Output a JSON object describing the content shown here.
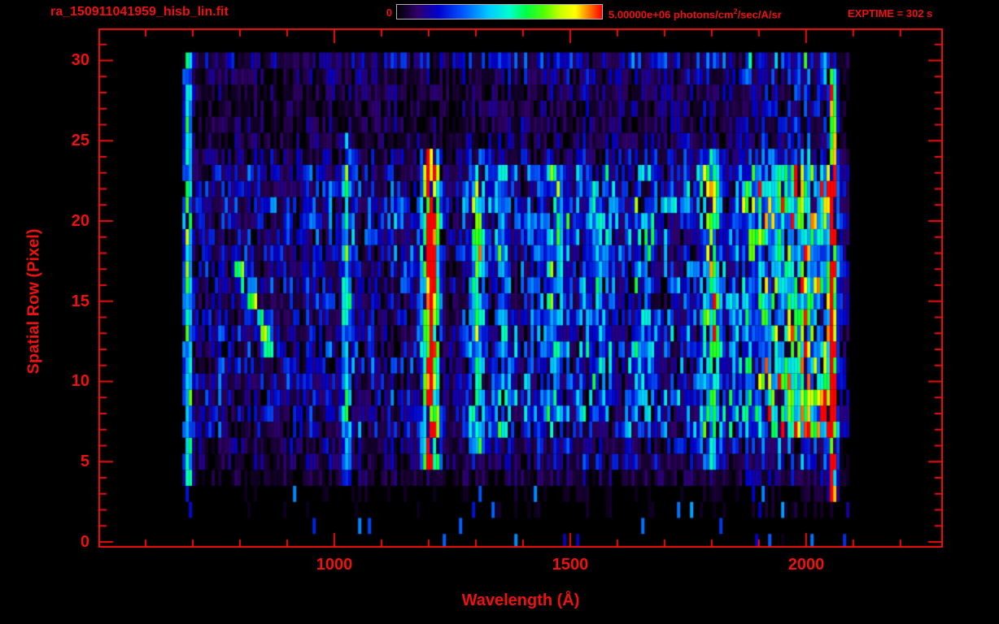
{
  "colors": {
    "accent": "#ee1111",
    "background": "#000000",
    "colorbar_border": "#b0b0b0"
  },
  "header": {
    "title": "ra_150911041959_hisb_lin.fit",
    "colorbar_min": "0",
    "colorbar_max_prefix": "5.00000e+06 photons/cm",
    "colorbar_max_sup": "2",
    "colorbar_max_suffix": "/sec/A/sr",
    "exptime": "EXPTIME = 302 s"
  },
  "chart_data": {
    "type": "heatmap",
    "title": "ra_150911041959_hisb_lin.fit",
    "xlabel": "Wavelength (Å)",
    "ylabel": "Spatial Row (Pixel)",
    "xlim": [
      500,
      2290
    ],
    "ylim": [
      -0.35,
      32.0
    ],
    "xticks": [
      1000,
      1500,
      2000
    ],
    "xtick_labels": [
      "1000",
      "1500",
      "2000"
    ],
    "xtick_minor_step": 100,
    "yticks": [
      0,
      5,
      10,
      15,
      20,
      25,
      30
    ],
    "ytick_labels": [
      "0",
      "5",
      "10",
      "15",
      "20",
      "25",
      "30"
    ],
    "ytick_minor_step": 1,
    "grid": false,
    "colorbar": {
      "min": 0,
      "max": 5000000,
      "units": "photons/cm2/sec/A/sr",
      "position": "top"
    },
    "exptime_seconds": 302,
    "colormap": [
      [
        0.0,
        "#000000"
      ],
      [
        0.1,
        "#30006a"
      ],
      [
        0.2,
        "#0000cc"
      ],
      [
        0.32,
        "#0055ff"
      ],
      [
        0.45,
        "#00ccff"
      ],
      [
        0.55,
        "#00ffcc"
      ],
      [
        0.63,
        "#00ff44"
      ],
      [
        0.72,
        "#55ff00"
      ],
      [
        0.8,
        "#ccff00"
      ],
      [
        0.87,
        "#ffff00"
      ],
      [
        0.93,
        "#ff8800"
      ],
      [
        1.0,
        "#ff0000"
      ]
    ],
    "data_range": {
      "wmin": 678,
      "wmax": 2090,
      "row_min": 0,
      "row_max": 30
    },
    "row_base": [
      0.03,
      0.03,
      0.08,
      0.1,
      0.3,
      0.55,
      0.6,
      0.95,
      1.0,
      1.0,
      1.0,
      1.0,
      0.95,
      0.95,
      0.9,
      0.9,
      0.9,
      0.95,
      1.0,
      1.05,
      1.1,
      1.15,
      1.1,
      1.0,
      0.6,
      0.45,
      0.4,
      0.4,
      0.42,
      0.5,
      0.8
    ],
    "continuum": [
      [
        678,
        0.16
      ],
      [
        800,
        0.18
      ],
      [
        1000,
        0.2
      ],
      [
        1180,
        0.2
      ],
      [
        1240,
        0.12
      ],
      [
        1300,
        0.22
      ],
      [
        1400,
        0.26
      ],
      [
        1700,
        0.28
      ],
      [
        1850,
        0.32
      ],
      [
        1950,
        0.42
      ],
      [
        2040,
        0.5
      ],
      [
        2055,
        0.3
      ],
      [
        2070,
        0.12
      ],
      [
        2090,
        0.08
      ]
    ],
    "lines": [
      {
        "w0": 690,
        "sigma": 6,
        "amp": 0.5,
        "rmin": 4,
        "rmax": 30
      },
      {
        "w0": 1026,
        "sigma": 7,
        "amp": 0.38,
        "rmin": 4,
        "rmax": 25
      },
      {
        "w0": 1205,
        "sigma": 11,
        "amp": 1.05,
        "rmin": 5,
        "rmax": 24
      },
      {
        "w0": 1305,
        "sigma": 9,
        "amp": 0.5,
        "rmin": 6,
        "rmax": 24
      },
      {
        "w0": 1356,
        "sigma": 7,
        "amp": 0.22,
        "rmin": 7,
        "rmax": 23
      },
      {
        "w0": 1460,
        "sigma": 18,
        "amp": 0.18,
        "rmin": 8,
        "rmax": 23
      },
      {
        "w0": 1560,
        "sigma": 16,
        "amp": 0.16,
        "rmin": 8,
        "rmax": 23
      },
      {
        "w0": 1660,
        "sigma": 16,
        "amp": 0.16,
        "rmin": 8,
        "rmax": 23
      },
      {
        "w0": 1800,
        "sigma": 13,
        "amp": 0.4,
        "rmin": 5,
        "rmax": 24
      },
      {
        "w0": 1975,
        "sigma": 60,
        "amp": 0.3,
        "rmin": 7,
        "rmax": 23
      },
      {
        "w0": 2058,
        "sigma": 5,
        "amp": 1.0,
        "rmin": 3,
        "rmax": 29
      }
    ],
    "diagonal_feature": {
      "rows": [
        12,
        17.5
      ],
      "w_at_rmin": 865,
      "w_at_rmax": 795,
      "sigma": 10,
      "amp": 0.55
    },
    "noise_seed": 42
  }
}
